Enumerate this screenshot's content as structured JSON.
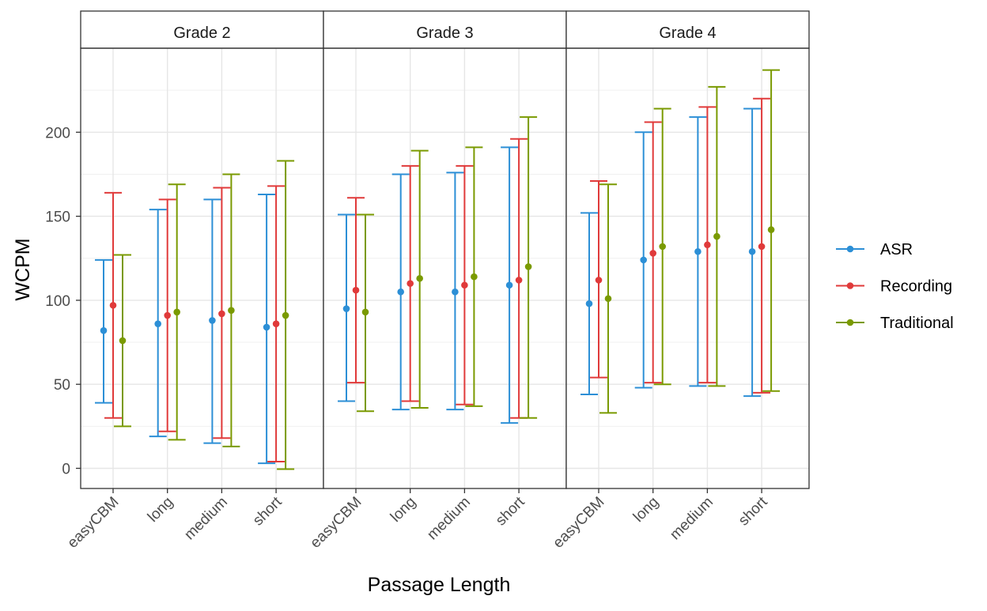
{
  "chart_data": {
    "type": "errorbar",
    "xlabel": "Passage Length",
    "ylabel": "WCPM",
    "ylim": [
      -12,
      250
    ],
    "yticks": [
      0,
      50,
      100,
      150,
      200
    ],
    "categories": [
      "easyCBM",
      "long",
      "medium",
      "short"
    ],
    "grid": true,
    "legend_position": "right",
    "series_colors": {
      "ASR": "#2c8fd6",
      "Recording": "#e03a3a",
      "Traditional": "#7a9a01"
    },
    "legend": [
      "ASR",
      "Recording",
      "Traditional"
    ],
    "panels": [
      {
        "title": "Grade 2",
        "series": [
          {
            "name": "ASR",
            "values": [
              {
                "x": "easyCBM",
                "mean": 82,
                "low": 39,
                "high": 124
              },
              {
                "x": "long",
                "mean": 86,
                "low": 19,
                "high": 154
              },
              {
                "x": "medium",
                "mean": 88,
                "low": 15,
                "high": 160
              },
              {
                "x": "short",
                "mean": 84,
                "low": 3,
                "high": 163
              }
            ]
          },
          {
            "name": "Recording",
            "values": [
              {
                "x": "easyCBM",
                "mean": 97,
                "low": 30,
                "high": 164
              },
              {
                "x": "long",
                "mean": 91,
                "low": 22,
                "high": 160
              },
              {
                "x": "medium",
                "mean": 92,
                "low": 18,
                "high": 167
              },
              {
                "x": "short",
                "mean": 86,
                "low": 4,
                "high": 168
              }
            ]
          },
          {
            "name": "Traditional",
            "values": [
              {
                "x": "easyCBM",
                "mean": 76,
                "low": 25,
                "high": 127
              },
              {
                "x": "long",
                "mean": 93,
                "low": 17,
                "high": 169
              },
              {
                "x": "medium",
                "mean": 94,
                "low": 13,
                "high": 175
              },
              {
                "x": "short",
                "mean": 91,
                "low": -0.5,
                "high": 183
              }
            ]
          }
        ]
      },
      {
        "title": "Grade 3",
        "series": [
          {
            "name": "ASR",
            "values": [
              {
                "x": "easyCBM",
                "mean": 95,
                "low": 40,
                "high": 151
              },
              {
                "x": "long",
                "mean": 105,
                "low": 35,
                "high": 175
              },
              {
                "x": "medium",
                "mean": 105,
                "low": 35,
                "high": 176
              },
              {
                "x": "short",
                "mean": 109,
                "low": 27,
                "high": 191
              }
            ]
          },
          {
            "name": "Recording",
            "values": [
              {
                "x": "easyCBM",
                "mean": 106,
                "low": 51,
                "high": 161
              },
              {
                "x": "long",
                "mean": 110,
                "low": 40,
                "high": 180
              },
              {
                "x": "medium",
                "mean": 109,
                "low": 38,
                "high": 180
              },
              {
                "x": "short",
                "mean": 112,
                "low": 30,
                "high": 196
              }
            ]
          },
          {
            "name": "Traditional",
            "values": [
              {
                "x": "easyCBM",
                "mean": 93,
                "low": 34,
                "high": 151
              },
              {
                "x": "long",
                "mean": 113,
                "low": 36,
                "high": 189
              },
              {
                "x": "medium",
                "mean": 114,
                "low": 37,
                "high": 191
              },
              {
                "x": "short",
                "mean": 120,
                "low": 30,
                "high": 209
              }
            ]
          }
        ]
      },
      {
        "title": "Grade 4",
        "series": [
          {
            "name": "ASR",
            "values": [
              {
                "x": "easyCBM",
                "mean": 98,
                "low": 44,
                "high": 152
              },
              {
                "x": "long",
                "mean": 124,
                "low": 48,
                "high": 200
              },
              {
                "x": "medium",
                "mean": 129,
                "low": 49,
                "high": 209
              },
              {
                "x": "short",
                "mean": 129,
                "low": 43,
                "high": 214
              }
            ]
          },
          {
            "name": "Recording",
            "values": [
              {
                "x": "easyCBM",
                "mean": 112,
                "low": 54,
                "high": 171
              },
              {
                "x": "long",
                "mean": 128,
                "low": 51,
                "high": 206
              },
              {
                "x": "medium",
                "mean": 133,
                "low": 51,
                "high": 215
              },
              {
                "x": "short",
                "mean": 132,
                "low": 45,
                "high": 220
              }
            ]
          },
          {
            "name": "Traditional",
            "values": [
              {
                "x": "easyCBM",
                "mean": 101,
                "low": 33,
                "high": 169
              },
              {
                "x": "long",
                "mean": 132,
                "low": 50,
                "high": 214
              },
              {
                "x": "medium",
                "mean": 138,
                "low": 49,
                "high": 227
              },
              {
                "x": "short",
                "mean": 142,
                "low": 46,
                "high": 237
              }
            ]
          }
        ]
      }
    ]
  }
}
